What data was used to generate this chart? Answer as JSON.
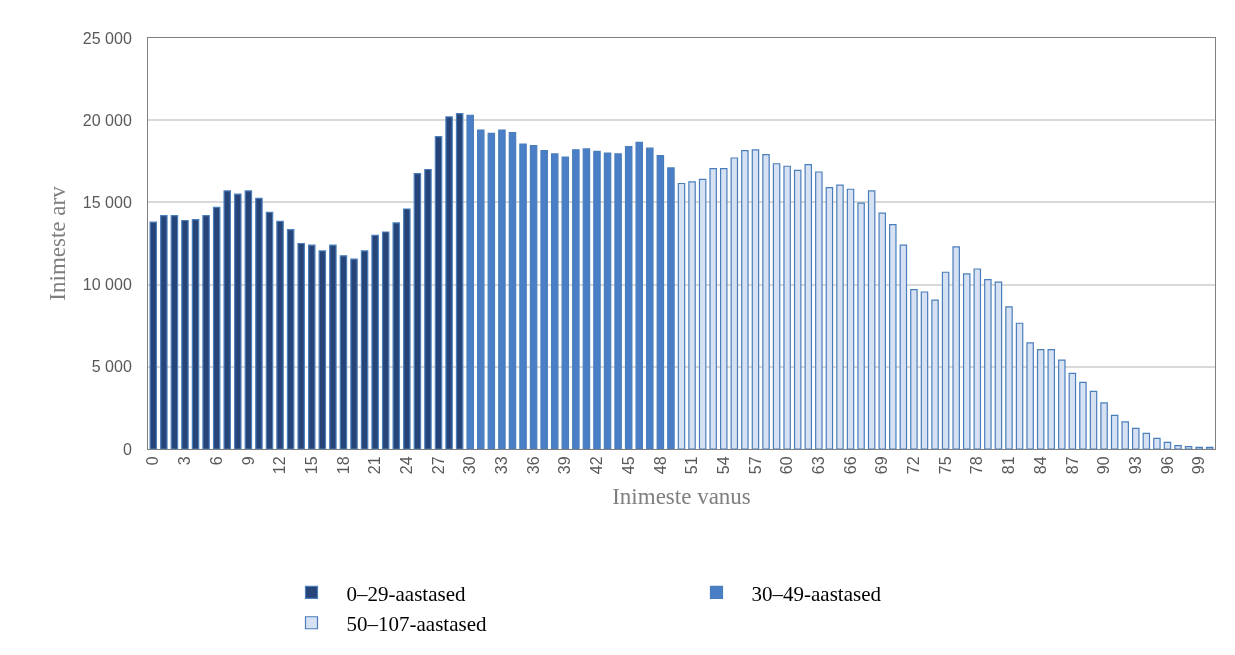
{
  "chart_data": {
    "type": "bar",
    "xlabel": "Inimeste vanus",
    "ylabel": "Inimeste arv",
    "categories": [
      "0",
      null,
      null,
      "3",
      null,
      null,
      "6",
      null,
      null,
      "9",
      null,
      null,
      "12",
      null,
      null,
      "15",
      null,
      null,
      "18",
      null,
      null,
      "21",
      null,
      null,
      "24",
      null,
      null,
      "27",
      null,
      null,
      "30",
      null,
      null,
      "33",
      null,
      null,
      "36",
      null,
      null,
      "39",
      null,
      null,
      "42",
      null,
      null,
      "45",
      null,
      null,
      "48",
      null,
      null,
      "51",
      null,
      null,
      "54",
      null,
      null,
      "57",
      null,
      null,
      "60",
      null,
      null,
      "63",
      null,
      null,
      "66",
      null,
      null,
      "69",
      null,
      null,
      "72",
      null,
      null,
      "75",
      null,
      null,
      "78",
      null,
      null,
      "81",
      null,
      null,
      "84",
      null,
      null,
      "87",
      null,
      null,
      "90",
      null,
      null,
      "93",
      null,
      null,
      "96",
      null,
      null,
      "99",
      null
    ],
    "series": [
      {
        "name": "0–29-aastased",
        "color": "#264478",
        "values": [
          13800,
          14200,
          14200,
          13900,
          13950,
          14200,
          14700,
          15700,
          15500,
          15700,
          15250,
          14400,
          13850,
          13350,
          12500,
          12400,
          12050,
          12400,
          11750,
          11550,
          12050,
          13000,
          13200,
          13750,
          14600,
          16750,
          17000,
          19000,
          20200,
          20400,
          null,
          null,
          null,
          null,
          null,
          null,
          null,
          null,
          null,
          null,
          null,
          null,
          null,
          null,
          null,
          null,
          null,
          null,
          null,
          null,
          null,
          null,
          null,
          null,
          null,
          null,
          null,
          null,
          null,
          null,
          null,
          null,
          null,
          null,
          null,
          null,
          null,
          null,
          null,
          null,
          null,
          null,
          null,
          null,
          null,
          null,
          null,
          null,
          null,
          null,
          null,
          null,
          null,
          null,
          null,
          null,
          null,
          null,
          null,
          null,
          null,
          null,
          null,
          null,
          null,
          null,
          null,
          null,
          null,
          null,
          null
        ]
      },
      {
        "name": "30–49-aastased",
        "color": "#4a7fc8",
        "values": [
          null,
          null,
          null,
          null,
          null,
          null,
          null,
          null,
          null,
          null,
          null,
          null,
          null,
          null,
          null,
          null,
          null,
          null,
          null,
          null,
          null,
          null,
          null,
          null,
          null,
          null,
          null,
          null,
          null,
          null,
          20300,
          19400,
          19200,
          19400,
          19250,
          18550,
          18450,
          18150,
          17950,
          17750,
          18200,
          18250,
          18100,
          18000,
          17950,
          18400,
          18650,
          18300,
          17850,
          17100,
          null,
          null,
          null,
          null,
          null,
          null,
          null,
          null,
          null,
          null,
          null,
          null,
          null,
          null,
          null,
          null,
          null,
          null,
          null,
          null,
          null,
          null,
          null,
          null,
          null,
          null,
          null,
          null,
          null,
          null,
          null,
          null,
          null,
          null,
          null,
          null,
          null,
          null,
          null,
          null,
          null,
          null,
          null,
          null,
          null,
          null,
          null,
          null,
          null,
          null,
          null
        ]
      },
      {
        "name": "50–107-aastased",
        "color": "#d6e2f3",
        "values": [
          null,
          null,
          null,
          null,
          null,
          null,
          null,
          null,
          null,
          null,
          null,
          null,
          null,
          null,
          null,
          null,
          null,
          null,
          null,
          null,
          null,
          null,
          null,
          null,
          null,
          null,
          null,
          null,
          null,
          null,
          null,
          null,
          null,
          null,
          null,
          null,
          null,
          null,
          null,
          null,
          null,
          null,
          null,
          null,
          null,
          null,
          null,
          null,
          null,
          null,
          16150,
          16250,
          16400,
          17050,
          17050,
          17700,
          18150,
          18200,
          17900,
          17350,
          17200,
          16950,
          17300,
          16850,
          15900,
          16050,
          15800,
          14950,
          15700,
          14350,
          13650,
          12400,
          9700,
          9550,
          9050,
          10750,
          12300,
          10650,
          10950,
          10300,
          10150,
          8650,
          7650,
          6450,
          6050,
          6050,
          5400,
          4600,
          4050,
          3500,
          2800,
          2050,
          1650,
          1250,
          950,
          650,
          400,
          200,
          150,
          100,
          100
        ]
      }
    ],
    "ylim": [
      0,
      25000
    ],
    "yticks": [
      0,
      {
        "value": 5000,
        "label": "5 000"
      },
      {
        "value": 10000,
        "label": "10 000"
      },
      {
        "value": 15000,
        "label": "15 000"
      },
      {
        "value": 20000,
        "label": "20 000"
      },
      {
        "value": 25000,
        "label": "25 000"
      }
    ],
    "grid": "y",
    "legend": "bottom"
  }
}
